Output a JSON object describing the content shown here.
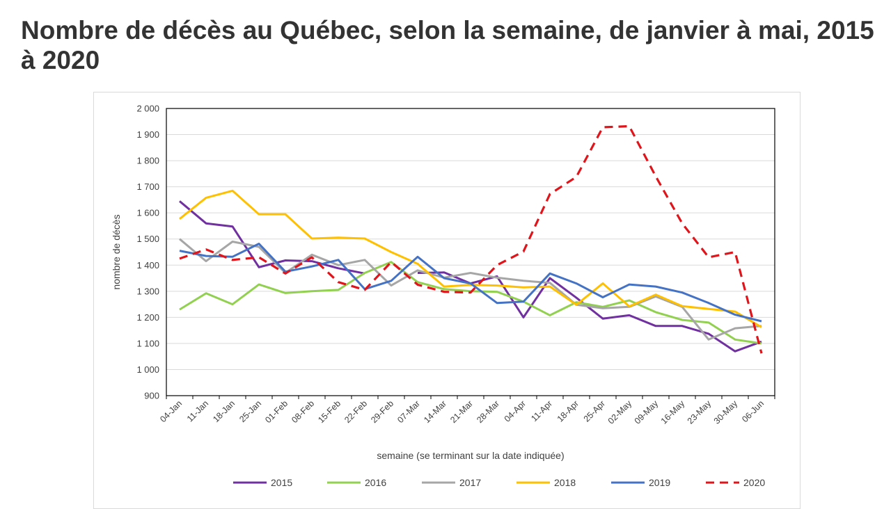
{
  "title": "Nombre de décès au Québec, selon la semaine, de janvier à mai, 2015 à 2020",
  "chart_data": {
    "type": "line",
    "xlabel": "semaine (se terminant sur la date indiquée)",
    "ylabel": "nombre de décès",
    "ylim": [
      900,
      2000
    ],
    "yticks": [
      900,
      1000,
      1100,
      1200,
      1300,
      1400,
      1500,
      1600,
      1700,
      1800,
      1900,
      2000
    ],
    "ytick_labels": [
      "900",
      "1 000",
      "1 100",
      "1 200",
      "1 300",
      "1 400",
      "1 500",
      "1 600",
      "1 700",
      "1 800",
      "1 900",
      "2 000"
    ],
    "categories": [
      "04-Jan",
      "11-Jan",
      "18-Jan",
      "25-Jan",
      "01-Feb",
      "08-Feb",
      "15-Feb",
      "22-Feb",
      "29-Feb",
      "07-Mar",
      "14-Mar",
      "21-Mar",
      "28-Mar",
      "04-Apr",
      "11-Apr",
      "18-Apr",
      "25-Apr",
      "02-May",
      "09-May",
      "16-May",
      "23-May",
      "30-May",
      "06-Jun"
    ],
    "grid": "horizontal",
    "legend_position": "bottom",
    "series": [
      {
        "name": "2015",
        "color": "#7030a0",
        "dashed": false,
        "values": [
          1645,
          1560,
          1548,
          1392,
          1418,
          1415,
          1388,
          1368,
          null,
          1370,
          1372,
          1330,
          1357,
          1200,
          1350,
          1275,
          1195,
          1208,
          1167,
          1167,
          1137,
          1070,
          1107
        ]
      },
      {
        "name": "2016",
        "color": "#92d050",
        "dashed": false,
        "values": [
          1230,
          1292,
          1250,
          1326,
          1293,
          1300,
          1305,
          1370,
          1412,
          1335,
          1308,
          1300,
          1298,
          1260,
          1208,
          1258,
          1240,
          1265,
          1220,
          1190,
          1180,
          1115,
          1100
        ]
      },
      {
        "name": "2017",
        "color": "#a6a6a6",
        "dashed": false,
        "values": [
          1500,
          1415,
          1490,
          1470,
          1370,
          1440,
          1400,
          1420,
          1322,
          1380,
          1352,
          1370,
          1352,
          1340,
          1332,
          1248,
          1235,
          1240,
          1280,
          1240,
          1115,
          1158,
          1167
        ]
      },
      {
        "name": "2018",
        "color": "#ffc000",
        "dashed": false,
        "values": [
          1577,
          1658,
          1685,
          1595,
          1595,
          1502,
          1505,
          1502,
          1450,
          1405,
          1318,
          1324,
          1322,
          1315,
          1318,
          1248,
          1330,
          1242,
          1287,
          1243,
          1232,
          1222,
          1162
        ]
      },
      {
        "name": "2019",
        "color": "#4472c4",
        "dashed": false,
        "values": [
          1455,
          1435,
          1432,
          1482,
          1375,
          1395,
          1420,
          1308,
          1340,
          1432,
          1350,
          1330,
          1255,
          1260,
          1368,
          1330,
          1277,
          1326,
          1318,
          1295,
          1255,
          1210,
          1185
        ]
      },
      {
        "name": "2020",
        "color": "#e0151b",
        "dashed": true,
        "values": [
          1425,
          1460,
          1420,
          1430,
          1368,
          1430,
          1335,
          1305,
          1412,
          1325,
          1298,
          1295,
          1400,
          1452,
          1672,
          1738,
          1928,
          1932,
          1740,
          1560,
          1430,
          1450,
          1062
        ]
      }
    ]
  }
}
